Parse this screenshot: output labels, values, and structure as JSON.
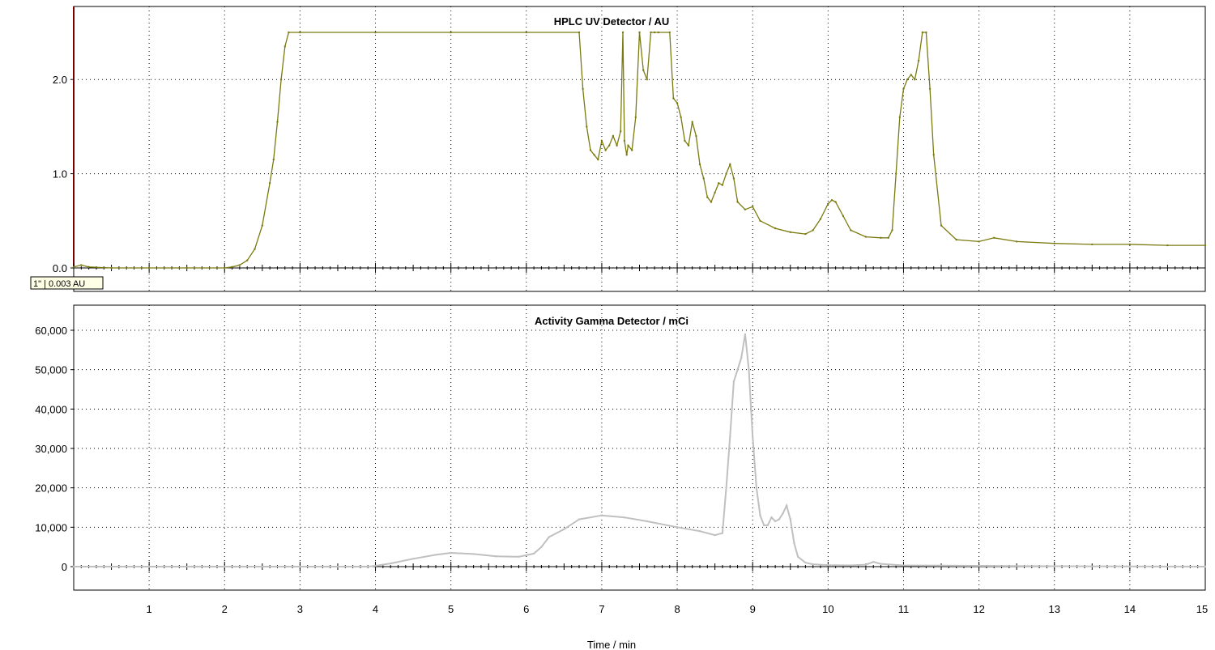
{
  "chart_data": [
    {
      "type": "line",
      "title": "HPLC UV Detector / AU",
      "xlabel": "Time / min",
      "ylabel": "",
      "xlim": [
        0,
        15
      ],
      "ylim": [
        0,
        2.55
      ],
      "yticks": [
        0.0,
        1.0,
        2.0
      ],
      "ytick_labels": [
        "0.0",
        "1.0",
        "2.0"
      ],
      "grid": true,
      "cursor_readout": "1\" | 0.003 AU",
      "series": [
        {
          "color": "#7a7a10",
          "x": [
            0,
            0.1,
            0.2,
            0.5,
            1.0,
            1.5,
            2.0,
            2.1,
            2.2,
            2.3,
            2.4,
            2.5,
            2.6,
            2.65,
            2.7,
            2.75,
            2.8,
            2.85,
            3.0,
            4.0,
            5.0,
            6.0,
            6.7,
            6.75,
            6.8,
            6.85,
            6.9,
            6.95,
            7.0,
            7.05,
            7.1,
            7.15,
            7.2,
            7.25,
            7.28,
            7.3,
            7.33,
            7.35,
            7.4,
            7.45,
            7.5,
            7.55,
            7.6,
            7.65,
            7.7,
            7.75,
            7.9,
            7.95,
            8.0,
            8.05,
            8.1,
            8.15,
            8.2,
            8.25,
            8.3,
            8.35,
            8.4,
            8.45,
            8.5,
            8.55,
            8.6,
            8.65,
            8.7,
            8.75,
            8.8,
            8.9,
            9.0,
            9.1,
            9.3,
            9.5,
            9.7,
            9.8,
            9.9,
            10.0,
            10.05,
            10.1,
            10.2,
            10.3,
            10.5,
            10.7,
            10.8,
            10.85,
            10.9,
            10.95,
            11.0,
            11.05,
            11.1,
            11.15,
            11.2,
            11.25,
            11.3,
            11.35,
            11.4,
            11.5,
            11.7,
            12.0,
            12.2,
            12.5,
            13.0,
            13.5,
            14.0,
            14.5,
            15.0
          ],
          "values": [
            0.01,
            0.03,
            0.01,
            0.0,
            0.0,
            0.0,
            0.0,
            0.01,
            0.03,
            0.08,
            0.2,
            0.45,
            0.9,
            1.15,
            1.55,
            2.0,
            2.35,
            2.5,
            2.5,
            2.5,
            2.5,
            2.5,
            2.5,
            1.9,
            1.5,
            1.25,
            1.2,
            1.15,
            1.35,
            1.25,
            1.3,
            1.4,
            1.3,
            1.45,
            2.5,
            1.35,
            1.2,
            1.3,
            1.25,
            1.6,
            2.5,
            2.1,
            2.0,
            2.5,
            2.5,
            2.5,
            2.5,
            1.8,
            1.75,
            1.6,
            1.35,
            1.3,
            1.55,
            1.4,
            1.1,
            0.95,
            0.75,
            0.7,
            0.8,
            0.9,
            0.88,
            1.0,
            1.1,
            0.95,
            0.7,
            0.62,
            0.65,
            0.5,
            0.42,
            0.38,
            0.36,
            0.4,
            0.52,
            0.68,
            0.72,
            0.7,
            0.55,
            0.4,
            0.33,
            0.32,
            0.32,
            0.4,
            1.0,
            1.6,
            1.9,
            2.0,
            2.05,
            2.0,
            2.2,
            2.5,
            2.5,
            1.9,
            1.2,
            0.45,
            0.3,
            0.28,
            0.32,
            0.28,
            0.26,
            0.25,
            0.25,
            0.24,
            0.24
          ]
        }
      ]
    },
    {
      "type": "line",
      "title": "Activity Gamma Detector / mCi",
      "xlabel": "Time / min",
      "ylabel": "",
      "xlim": [
        0,
        15
      ],
      "ylim": [
        -6000,
        66000
      ],
      "xticks": [
        1,
        2,
        3,
        4,
        5,
        6,
        7,
        8,
        9,
        10,
        11,
        12,
        13,
        14,
        15
      ],
      "yticks": [
        0,
        10000,
        20000,
        30000,
        40000,
        50000,
        60000
      ],
      "ytick_labels": [
        "0",
        "10,000",
        "20,000",
        "30,000",
        "40,000",
        "50,000",
        "60,000"
      ],
      "grid": true,
      "series": [
        {
          "color": "#c0c0c0",
          "x": [
            0,
            1,
            2,
            3,
            3.9,
            4.0,
            4.2,
            4.5,
            4.8,
            5.0,
            5.3,
            5.6,
            5.9,
            6.1,
            6.2,
            6.3,
            6.5,
            6.7,
            7.0,
            7.3,
            7.6,
            8.0,
            8.3,
            8.5,
            8.6,
            8.65,
            8.7,
            8.75,
            8.8,
            8.85,
            8.9,
            8.95,
            9.0,
            9.05,
            9.1,
            9.15,
            9.2,
            9.25,
            9.3,
            9.35,
            9.4,
            9.45,
            9.5,
            9.55,
            9.6,
            9.7,
            9.8,
            10.0,
            10.3,
            10.5,
            10.6,
            10.7,
            11.0,
            12.0,
            13.0,
            14.0,
            15.0
          ],
          "values": [
            0,
            0,
            0,
            0,
            0,
            200,
            800,
            2000,
            3000,
            3500,
            3200,
            2600,
            2500,
            3300,
            5000,
            7500,
            9500,
            12000,
            13000,
            12500,
            11500,
            10000,
            9000,
            8000,
            8500,
            20000,
            33000,
            47000,
            50000,
            53000,
            59000,
            50000,
            33000,
            20000,
            13000,
            10500,
            10500,
            12500,
            11500,
            12000,
            13500,
            15500,
            12000,
            6000,
            2500,
            1000,
            600,
            400,
            300,
            500,
            1200,
            700,
            300,
            200,
            100,
            50,
            0
          ]
        }
      ]
    }
  ]
}
